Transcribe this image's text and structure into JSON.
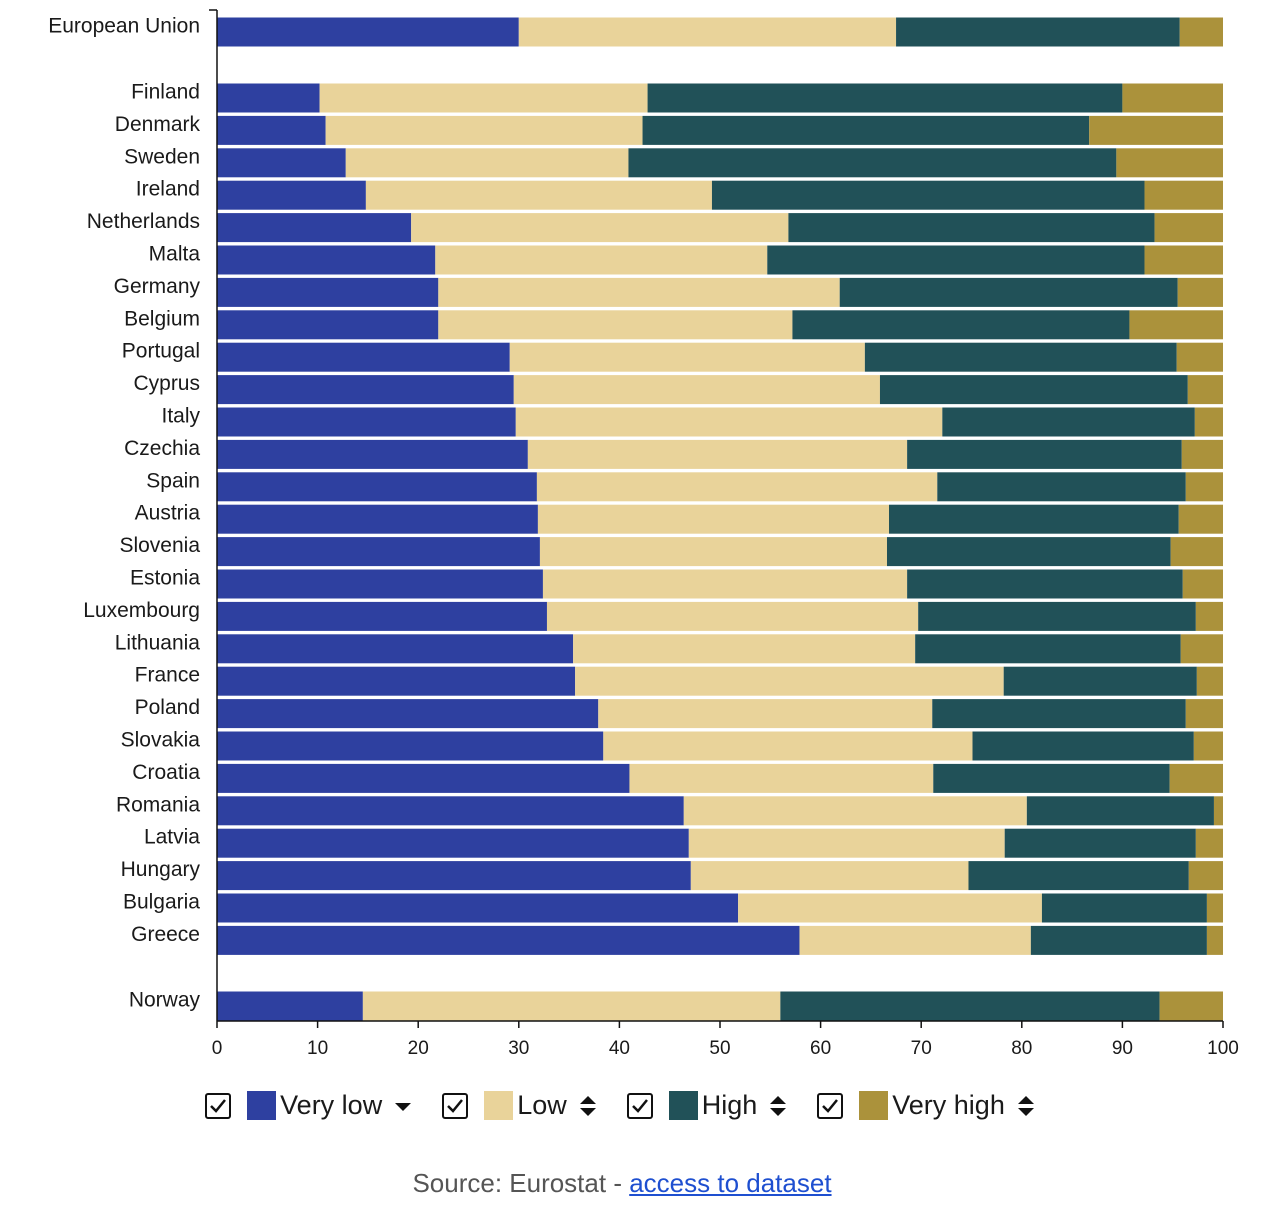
{
  "colors": {
    "very_low": "#2e40a0",
    "low": "#e9d39a",
    "high": "#215158",
    "very_high": "#ab923b"
  },
  "chart_data": {
    "type": "bar",
    "orientation": "horizontal",
    "stacked": true,
    "categories": [
      "European Union",
      "Finland",
      "Denmark",
      "Sweden",
      "Ireland",
      "Netherlands",
      "Malta",
      "Germany",
      "Belgium",
      "Portugal",
      "Cyprus",
      "Italy",
      "Czechia",
      "Spain",
      "Austria",
      "Slovenia",
      "Estonia",
      "Luxembourg",
      "Lithuania",
      "France",
      "Poland",
      "Slovakia",
      "Croatia",
      "Romania",
      "Latvia",
      "Hungary",
      "Bulgaria",
      "Greece",
      "Norway"
    ],
    "series": [
      {
        "name": "Very low",
        "key": "very_low",
        "values": [
          30.0,
          10.2,
          10.8,
          12.8,
          14.8,
          19.3,
          21.7,
          22.0,
          22.0,
          29.1,
          29.5,
          29.7,
          30.9,
          31.8,
          31.9,
          32.1,
          32.4,
          32.8,
          35.4,
          35.6,
          37.9,
          38.4,
          41.0,
          46.4,
          46.9,
          47.1,
          51.8,
          57.9,
          14.5
        ]
      },
      {
        "name": "Low",
        "key": "low",
        "values": [
          37.5,
          32.6,
          31.5,
          28.1,
          34.4,
          37.5,
          33.0,
          39.9,
          35.2,
          35.3,
          36.4,
          42.4,
          37.7,
          39.8,
          34.9,
          34.5,
          36.2,
          36.9,
          34.0,
          42.6,
          33.2,
          36.7,
          30.2,
          34.1,
          31.4,
          27.6,
          30.2,
          23.0,
          41.5
        ]
      },
      {
        "name": "High",
        "key": "high",
        "values": [
          28.2,
          47.2,
          44.4,
          48.5,
          43.0,
          36.4,
          37.5,
          33.6,
          33.5,
          31.0,
          30.6,
          25.1,
          27.3,
          24.7,
          28.8,
          28.2,
          27.4,
          27.6,
          26.4,
          19.2,
          25.2,
          22.0,
          23.5,
          18.6,
          19.0,
          21.9,
          16.4,
          17.5,
          37.7
        ]
      },
      {
        "name": "Very high",
        "key": "very_high",
        "values": [
          4.3,
          10.0,
          13.3,
          10.6,
          7.8,
          6.8,
          7.8,
          4.5,
          9.3,
          4.6,
          3.5,
          2.8,
          4.1,
          3.7,
          4.4,
          5.2,
          4.0,
          2.7,
          4.2,
          2.6,
          3.7,
          2.9,
          5.3,
          0.9,
          2.7,
          3.4,
          1.6,
          1.6,
          6.3
        ]
      }
    ],
    "xlim": [
      0,
      100
    ],
    "xticks": [
      "0",
      "10",
      "20",
      "30",
      "40",
      "50",
      "60",
      "70",
      "80",
      "90",
      "100"
    ],
    "legend_position": "bottom",
    "grid": false
  },
  "legend": {
    "items": [
      {
        "label": "Very low",
        "sort": "desc"
      },
      {
        "label": "Low",
        "sort": "both"
      },
      {
        "label": "High",
        "sort": "both"
      },
      {
        "label": "Very high",
        "sort": "both"
      }
    ]
  },
  "source": {
    "prefix": "Source: Eurostat - ",
    "link_text": "access to dataset"
  }
}
